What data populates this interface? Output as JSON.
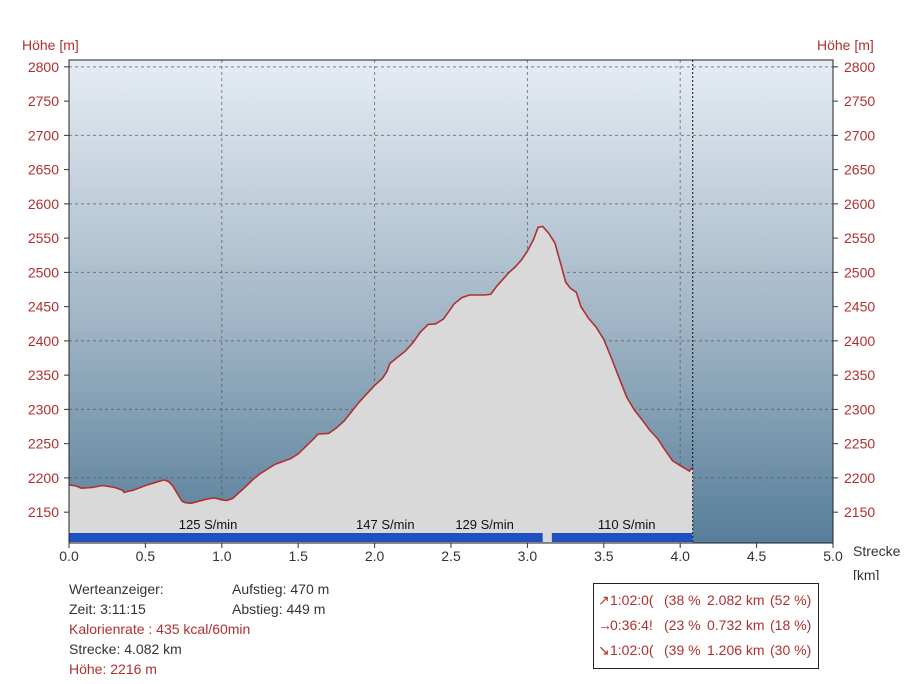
{
  "chart_data": {
    "type": "area",
    "ylabel": "Höhe [m]",
    "xlabel": "Strecke",
    "xunit": "[km]",
    "xlim": [
      0,
      5
    ],
    "ylim": [
      2105,
      2810
    ],
    "xticks": [
      "0.0",
      "0.5",
      "1.0",
      "1.5",
      "2.0",
      "2.5",
      "3.0",
      "3.5",
      "4.0",
      "4.5",
      "5.0"
    ],
    "yticks": [
      "2150",
      "2200",
      "2250",
      "2300",
      "2350",
      "2400",
      "2450",
      "2500",
      "2550",
      "2600",
      "2650",
      "2700",
      "2750",
      "2800"
    ],
    "grid_x": [
      1,
      2,
      3,
      4
    ],
    "grid_y": [
      2200,
      2300,
      2400,
      2500,
      2600,
      2700,
      2800
    ],
    "marker_x": 4.082,
    "colors": {
      "profile_line": "#b03030",
      "fill": "#d9d9d9",
      "cadence_bar": "#2050c0",
      "sky_top": "#e6ecf3",
      "sky_bottom": "#577e99",
      "axis_text": "#b03030"
    },
    "series": [
      {
        "x": [
          0.0,
          0.05,
          0.08,
          0.15,
          0.22,
          0.3,
          0.35,
          0.36,
          0.42,
          0.5,
          0.56,
          0.62,
          0.65,
          0.68,
          0.72,
          0.74,
          0.76,
          0.8,
          0.85,
          0.9,
          0.95,
          1.0,
          1.03,
          1.07,
          1.1,
          1.15,
          1.2,
          1.25,
          1.3,
          1.35,
          1.4,
          1.45,
          1.5,
          1.55,
          1.6,
          1.63,
          1.7,
          1.75,
          1.8,
          1.85,
          1.9,
          1.95,
          2.0,
          2.05,
          2.08,
          2.1,
          2.15,
          2.2,
          2.25,
          2.3,
          2.35,
          2.4,
          2.45,
          2.48,
          2.52,
          2.57,
          2.62,
          2.67,
          2.72,
          2.76,
          2.8,
          2.84,
          2.88,
          2.92,
          2.96,
          3.0,
          3.04,
          3.07,
          3.1,
          3.14,
          3.18,
          3.22,
          3.25,
          3.28,
          3.32,
          3.35,
          3.4,
          3.45,
          3.5,
          3.55,
          3.6,
          3.65,
          3.7,
          3.75,
          3.8,
          3.85,
          3.9,
          3.95,
          4.0,
          4.03,
          4.06,
          4.082
        ],
        "y": [
          2190,
          2188,
          2185,
          2186,
          2189,
          2186,
          2182,
          2179,
          2182,
          2189,
          2193,
          2197,
          2195,
          2188,
          2173,
          2166,
          2164,
          2163,
          2166,
          2169,
          2171,
          2168,
          2167,
          2170,
          2176,
          2186,
          2197,
          2206,
          2213,
          2220,
          2224,
          2228,
          2235,
          2246,
          2257,
          2264,
          2265,
          2273,
          2283,
          2297,
          2311,
          2323,
          2335,
          2345,
          2355,
          2367,
          2376,
          2385,
          2397,
          2413,
          2424,
          2425,
          2432,
          2441,
          2454,
          2463,
          2467,
          2467,
          2467,
          2468,
          2480,
          2490,
          2500,
          2508,
          2518,
          2531,
          2548,
          2566,
          2567,
          2557,
          2543,
          2511,
          2486,
          2477,
          2471,
          2450,
          2433,
          2420,
          2402,
          2375,
          2346,
          2318,
          2299,
          2285,
          2270,
          2258,
          2241,
          2225,
          2218,
          2214,
          2210,
          2216
        ]
      }
    ],
    "cadence": {
      "labels": [
        "125 S/min",
        "147 S/min",
        "129 S/min",
        "110 S/min"
      ],
      "label_x": [
        0.91,
        2.07,
        2.72,
        3.65
      ],
      "segments": [
        [
          0.0,
          3.1
        ],
        [
          3.16,
          4.08
        ]
      ]
    }
  },
  "info": {
    "werteanzeiger": "Werteanzeiger:",
    "aufstieg": "Aufstieg: 470 m",
    "zeit": "Zeit: 3:11:15",
    "abstieg": "Abstieg: 449 m",
    "kalorien": "Kalorienrate : 435 kcal/60min",
    "strecke": "Strecke: 4.082 km",
    "hoehe": "Höhe: 2216 m"
  },
  "summary": [
    {
      "icon": "arrow-up-right-icon",
      "glyph": "↗",
      "time": "1:02:0(",
      "pct_time": "(38 %",
      "dist": "2.082 km",
      "pct_dist": "(52 %)"
    },
    {
      "icon": "arrow-right-icon",
      "glyph": "→",
      "time": "0:36:4!",
      "pct_time": "(23 %",
      "dist": "0.732 km",
      "pct_dist": "(18 %)"
    },
    {
      "icon": "arrow-down-right-icon",
      "glyph": "↘",
      "time": "1:02:0(",
      "pct_time": "(39 %",
      "dist": "1.206 km",
      "pct_dist": "(30 %)"
    }
  ]
}
